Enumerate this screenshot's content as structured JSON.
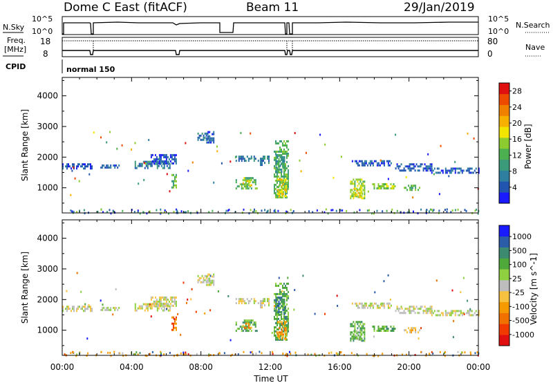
{
  "header": {
    "station": "Dome C East (fitACF)",
    "beam": "Beam 11",
    "date": "29/Jan/2019"
  },
  "panels": {
    "sky_label": "N.Sky",
    "search_label": "N.Search",
    "sky_top": "10^5",
    "sky_bottom": "10^0",
    "search_top": "10^5",
    "search_bottom": "10^0",
    "freq_label_1": "Freq.",
    "freq_label_2": "[MHz]",
    "freq_top": "18",
    "freq_bottom": "8",
    "nave_label": "Nave",
    "nave_top": "80",
    "nave_bottom": "0",
    "cpid_label": "CPID",
    "cpid_value": "normal 150"
  },
  "chart_data": [
    {
      "type": "heatmap",
      "title": "",
      "xlabel": "Time UT",
      "ylabel": "Slant Range [km]",
      "x_ticks": [
        "00:00",
        "04:00",
        "08:00",
        "12:00",
        "16:00",
        "20:00",
        "00:00"
      ],
      "xlim_hours": [
        0,
        24
      ],
      "y_ticks": [
        1000,
        2000,
        3000,
        4000
      ],
      "ylim": [
        180,
        4600
      ],
      "colorbar": {
        "label": "Power [dB]",
        "ticks": [
          "4",
          "8",
          "12",
          "16",
          "20",
          "24",
          "28"
        ],
        "range": [
          0,
          30
        ],
        "colors": [
          "#1a1aff",
          "#2255b0",
          "#2f7fa0",
          "#3a9a7a",
          "#4caf50",
          "#8dcc2e",
          "#f2e600",
          "#f5b000",
          "#f08000",
          "#ee4a00",
          "#e01010"
        ]
      },
      "echo_regions": [
        {
          "t0": 0.0,
          "t1": 1.7,
          "r0": 1640,
          "r1": 1800,
          "level": 1
        },
        {
          "t0": 2.2,
          "t1": 3.3,
          "r0": 1640,
          "r1": 1760,
          "level": 1
        },
        {
          "t0": 4.1,
          "t1": 6.2,
          "r0": 1620,
          "r1": 1880,
          "level": 2
        },
        {
          "t0": 5.1,
          "t1": 6.6,
          "r0": 1800,
          "r1": 2100,
          "level": 1
        },
        {
          "t0": 6.3,
          "t1": 6.6,
          "r0": 1000,
          "r1": 1450,
          "level": 4
        },
        {
          "t0": 7.8,
          "t1": 8.4,
          "r0": 2550,
          "r1": 2800,
          "level": 2
        },
        {
          "t0": 8.3,
          "t1": 8.7,
          "r0": 2450,
          "r1": 2850,
          "level": 1
        },
        {
          "t0": 10.0,
          "t1": 11.3,
          "r0": 1850,
          "r1": 2050,
          "level": 2
        },
        {
          "t0": 10.0,
          "t1": 11.2,
          "r0": 950,
          "r1": 1350,
          "level": 4
        },
        {
          "t0": 10.4,
          "t1": 10.9,
          "r0": 1050,
          "r1": 1250,
          "level": 6
        },
        {
          "t0": 11.4,
          "t1": 11.9,
          "r0": 1750,
          "r1": 2050,
          "level": 2
        },
        {
          "t0": 12.2,
          "t1": 13.0,
          "r0": 700,
          "r1": 2550,
          "level": 4
        },
        {
          "t0": 12.4,
          "t1": 12.9,
          "r0": 750,
          "r1": 1300,
          "level": 6
        },
        {
          "t0": 12.3,
          "t1": 12.8,
          "r0": 1500,
          "r1": 2100,
          "level": 3
        },
        {
          "t0": 16.6,
          "t1": 17.4,
          "r0": 650,
          "r1": 1300,
          "level": 5
        },
        {
          "t0": 16.8,
          "t1": 17.2,
          "r0": 700,
          "r1": 1000,
          "level": 6
        },
        {
          "t0": 16.7,
          "t1": 19.0,
          "r0": 1750,
          "r1": 1900,
          "level": 1
        },
        {
          "t0": 17.8,
          "t1": 19.2,
          "r0": 950,
          "r1": 1150,
          "level": 5
        },
        {
          "t0": 19.2,
          "t1": 21.3,
          "r0": 1550,
          "r1": 1800,
          "level": 1
        },
        {
          "t0": 19.7,
          "t1": 20.7,
          "r0": 950,
          "r1": 1100,
          "level": 4
        },
        {
          "t0": 21.2,
          "t1": 24.0,
          "r0": 1500,
          "r1": 1660,
          "level": 1
        }
      ],
      "ground_scatter_km": 250
    },
    {
      "type": "heatmap",
      "title": "",
      "xlabel": "Time UT",
      "ylabel": "Slant Range [km]",
      "x_ticks": [
        "00:00",
        "04:00",
        "08:00",
        "12:00",
        "16:00",
        "20:00",
        "00:00"
      ],
      "xlim_hours": [
        0,
        24
      ],
      "y_ticks": [
        1000,
        2000,
        3000,
        4000
      ],
      "ylim": [
        180,
        4600
      ],
      "colorbar": {
        "label": "Velocity [m s^-1]",
        "ticks": [
          "1000",
          "500",
          "100",
          "25",
          "-25",
          "-100",
          "-500",
          "-1000"
        ],
        "range": [
          -1200,
          1200
        ],
        "colors": [
          "#e01010",
          "#f03a00",
          "#f07000",
          "#f59a00",
          "#f7c240",
          "#bdbdbd",
          "#8fd040",
          "#4fa83a",
          "#3c8a70",
          "#2a5ca8",
          "#1a1aff"
        ]
      },
      "echo_regions": [
        {
          "t0": 0.0,
          "t1": 1.7,
          "r0": 1640,
          "r1": 1800,
          "level": 5
        },
        {
          "t0": 2.2,
          "t1": 3.3,
          "r0": 1640,
          "r1": 1760,
          "level": 5
        },
        {
          "t0": 4.1,
          "t1": 6.2,
          "r0": 1620,
          "r1": 1880,
          "level": 5
        },
        {
          "t0": 5.1,
          "t1": 6.6,
          "r0": 1800,
          "r1": 2100,
          "level": 5
        },
        {
          "t0": 6.3,
          "t1": 6.6,
          "r0": 1000,
          "r1": 1450,
          "level": 2
        },
        {
          "t0": 7.8,
          "t1": 8.4,
          "r0": 2550,
          "r1": 2800,
          "level": 5
        },
        {
          "t0": 8.3,
          "t1": 8.7,
          "r0": 2450,
          "r1": 2850,
          "level": 5
        },
        {
          "t0": 10.0,
          "t1": 11.3,
          "r0": 1850,
          "r1": 2050,
          "level": 5
        },
        {
          "t0": 10.0,
          "t1": 11.2,
          "r0": 950,
          "r1": 1350,
          "level": 7
        },
        {
          "t0": 10.4,
          "t1": 10.9,
          "r0": 1050,
          "r1": 1250,
          "level": 3
        },
        {
          "t0": 11.4,
          "t1": 11.9,
          "r0": 1750,
          "r1": 2050,
          "level": 5
        },
        {
          "t0": 12.2,
          "t1": 13.0,
          "r0": 700,
          "r1": 2550,
          "level": 7
        },
        {
          "t0": 12.4,
          "t1": 12.9,
          "r0": 750,
          "r1": 1300,
          "level": 3
        },
        {
          "t0": 12.3,
          "t1": 12.8,
          "r0": 1500,
          "r1": 2100,
          "level": 8
        },
        {
          "t0": 16.6,
          "t1": 17.4,
          "r0": 650,
          "r1": 1300,
          "level": 7
        },
        {
          "t0": 16.8,
          "t1": 17.2,
          "r0": 700,
          "r1": 1000,
          "level": 6
        },
        {
          "t0": 16.7,
          "t1": 19.0,
          "r0": 1750,
          "r1": 1900,
          "level": 5
        },
        {
          "t0": 17.8,
          "t1": 19.2,
          "r0": 950,
          "r1": 1150,
          "level": 7
        },
        {
          "t0": 19.2,
          "t1": 21.3,
          "r0": 1550,
          "r1": 1800,
          "level": 5
        },
        {
          "t0": 19.7,
          "t1": 20.7,
          "r0": 950,
          "r1": 1100,
          "level": 4
        },
        {
          "t0": 21.2,
          "t1": 24.0,
          "r0": 1500,
          "r1": 1660,
          "level": 5
        }
      ],
      "ground_scatter_km": 250
    }
  ]
}
